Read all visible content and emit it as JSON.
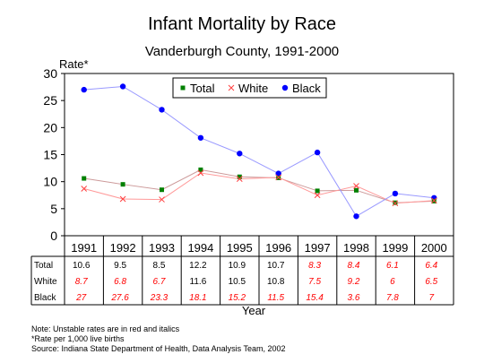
{
  "chart_data": {
    "type": "line",
    "title": "Infant Mortality by Race",
    "subtitle": "Vanderburgh County, 1991-2000",
    "ylabel": "Rate*",
    "xlabel": "Year",
    "ylim": [
      0,
      30
    ],
    "yticks": [
      0,
      5,
      10,
      15,
      20,
      25,
      30
    ],
    "legend_position": "top",
    "categories": [
      "1991",
      "1992",
      "1993",
      "1994",
      "1995",
      "1996",
      "1997",
      "1998",
      "1999",
      "2000"
    ],
    "series": [
      {
        "name": "Total",
        "color": "#008000",
        "line_color": "#cc9999",
        "marker": "square",
        "values": [
          10.6,
          9.5,
          8.5,
          12.2,
          10.9,
          10.7,
          8.3,
          8.4,
          6.1,
          6.4
        ],
        "unstable": [
          false,
          false,
          false,
          false,
          false,
          false,
          true,
          true,
          true,
          true
        ],
        "labels": [
          "10.6",
          "9.5",
          "8.5",
          "12.2",
          "10.9",
          "10.7",
          "8.3",
          "8.4",
          "6.1",
          "6.4"
        ]
      },
      {
        "name": "White",
        "color": "#ff4040",
        "line_color": "#ff9999",
        "marker": "x",
        "values": [
          8.7,
          6.8,
          6.7,
          11.6,
          10.5,
          10.8,
          7.5,
          9.2,
          6,
          6.5
        ],
        "unstable": [
          true,
          true,
          true,
          false,
          false,
          false,
          true,
          true,
          true,
          true
        ],
        "labels": [
          "8.7",
          "6.8",
          "6.7",
          "11.6",
          "10.5",
          "10.8",
          "7.5",
          "9.2",
          "6",
          "6.5"
        ]
      },
      {
        "name": "Black",
        "color": "#0000ff",
        "line_color": "#9999ff",
        "marker": "circle",
        "values": [
          27,
          27.6,
          23.3,
          18.1,
          15.2,
          11.5,
          15.4,
          3.6,
          7.8,
          7
        ],
        "unstable": [
          true,
          true,
          true,
          true,
          true,
          true,
          true,
          true,
          true,
          true
        ],
        "labels": [
          "27",
          "27.6",
          "23.3",
          "18.1",
          "15.2",
          "11.5",
          "15.4",
          "3.6",
          "7.8",
          "7"
        ]
      }
    ],
    "grid": false,
    "unstable_color": "#ff0000"
  },
  "notes": [
    "Note:  Unstable rates are in red and italics",
    "*Rate per 1,000 live births",
    "Source:  Indiana State Department of Health, Data Analysis Team, 2002"
  ]
}
